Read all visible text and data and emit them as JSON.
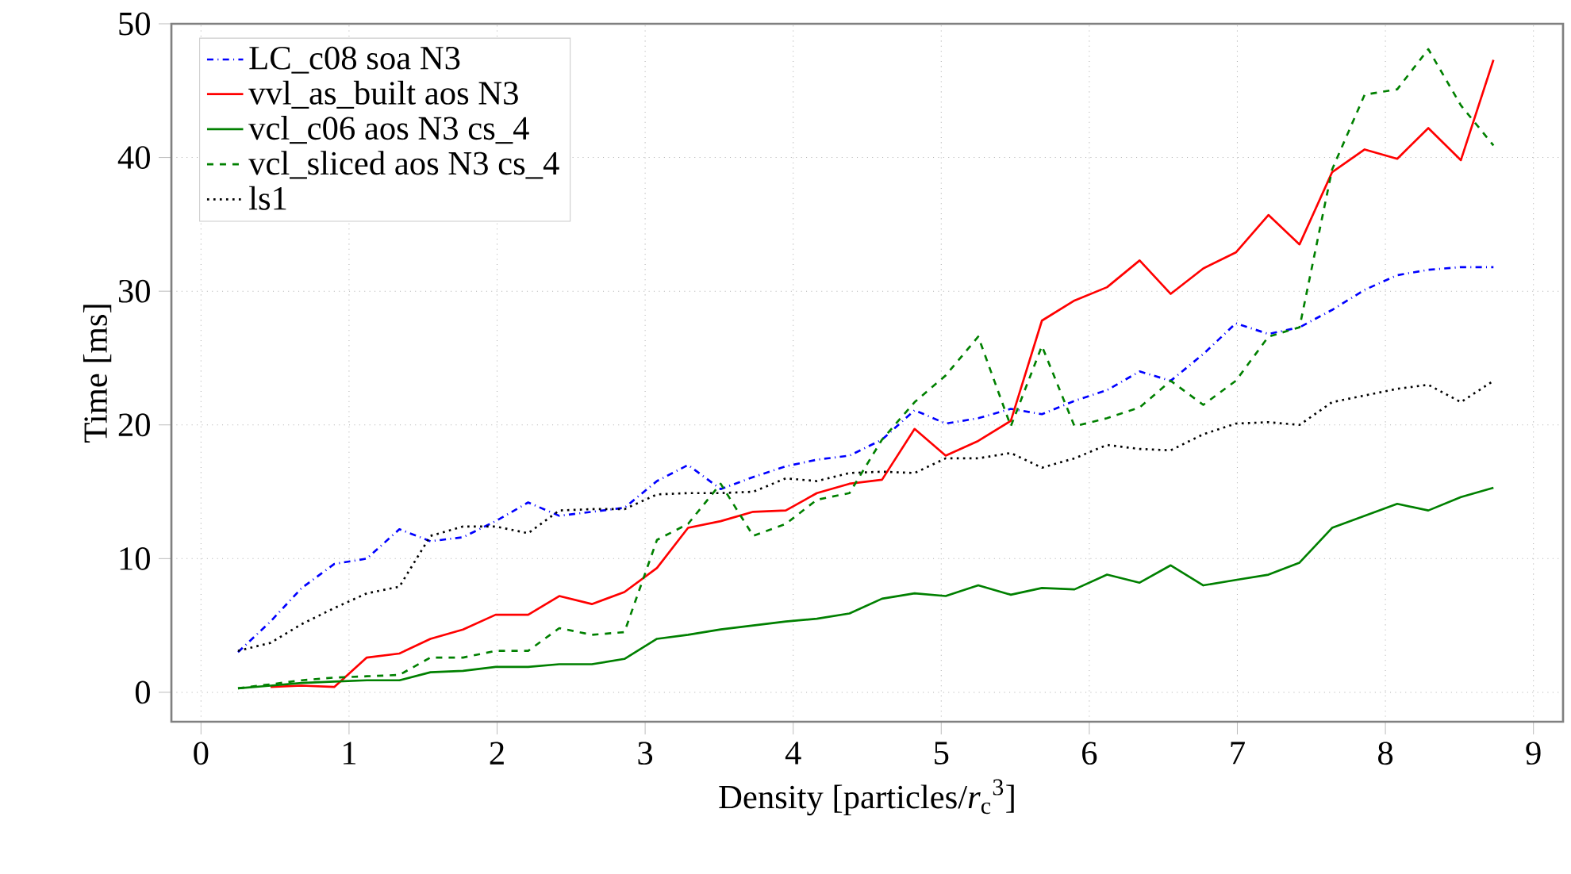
{
  "chart_data": {
    "type": "line",
    "xlabel": "Density [particles/*r*$_{c}$$^{3}$]",
    "ylabel": "Time [ms]",
    "x": [
      0.25,
      0.47,
      0.68,
      0.9,
      1.12,
      1.34,
      1.55,
      1.77,
      1.99,
      2.21,
      2.42,
      2.64,
      2.86,
      3.08,
      3.29,
      3.51,
      3.73,
      3.95,
      4.16,
      4.38,
      4.6,
      4.82,
      5.03,
      5.25,
      5.47,
      5.68,
      5.9,
      6.12,
      6.34,
      6.55,
      6.77,
      6.99,
      7.21,
      7.42,
      7.64,
      7.86,
      8.08,
      8.29,
      8.51,
      8.73
    ],
    "series": [
      {
        "name": "LC_c08 soa N3",
        "color": "#0000ff",
        "line_style": "dashdot",
        "values": [
          3.0,
          5.3,
          7.8,
          9.6,
          10.0,
          12.2,
          11.3,
          11.6,
          12.8,
          14.2,
          13.2,
          13.5,
          13.8,
          15.8,
          17.0,
          15.2,
          16.1,
          16.9,
          17.4,
          17.7,
          18.9,
          21.1,
          20.1,
          20.5,
          21.2,
          20.8,
          21.8,
          22.6,
          24.0,
          23.3,
          25.3,
          27.6,
          26.8,
          27.3,
          28.6,
          30.1,
          31.2,
          31.6,
          31.8,
          31.8
        ]
      },
      {
        "name": "vvl_as_built aos N3",
        "color": "#ff0000",
        "line_style": "solid",
        "values": [
          null,
          0.4,
          0.5,
          0.4,
          2.6,
          2.9,
          4.0,
          4.7,
          5.8,
          5.8,
          7.2,
          6.6,
          7.5,
          9.3,
          12.3,
          12.8,
          13.5,
          13.6,
          14.9,
          15.6,
          15.9,
          19.7,
          17.7,
          18.8,
          20.3,
          27.8,
          29.3,
          30.3,
          32.3,
          29.8,
          31.7,
          32.9,
          35.7,
          33.5,
          38.9,
          40.6,
          39.9,
          42.2,
          39.8,
          47.3
        ]
      },
      {
        "name": "vcl_c06 aos N3 cs_4",
        "color": "#008000",
        "line_style": "solid",
        "values": [
          0.3,
          0.5,
          0.7,
          0.8,
          0.9,
          0.9,
          1.5,
          1.6,
          1.9,
          1.9,
          2.1,
          2.1,
          2.5,
          4.0,
          4.3,
          4.7,
          5.0,
          5.3,
          5.5,
          5.9,
          7.0,
          7.4,
          7.2,
          8.0,
          7.3,
          7.8,
          7.7,
          8.8,
          8.2,
          9.5,
          8.0,
          8.4,
          8.8,
          9.7,
          12.3,
          13.2,
          14.1,
          13.6,
          14.6,
          15.3
        ]
      },
      {
        "name": "vcl_sliced aos N3 cs_4",
        "color": "#008000",
        "line_style": "dashed",
        "values": [
          0.3,
          0.6,
          0.9,
          1.1,
          1.2,
          1.3,
          2.6,
          2.6,
          3.1,
          3.1,
          4.8,
          4.3,
          4.5,
          11.4,
          12.6,
          15.6,
          11.7,
          12.6,
          14.4,
          14.9,
          18.9,
          21.7,
          23.7,
          26.6,
          19.9,
          25.9,
          19.9,
          20.5,
          21.3,
          23.3,
          21.5,
          23.3,
          26.6,
          27.3,
          39.1,
          44.7,
          45.1,
          48.1,
          43.9,
          40.9
        ]
      },
      {
        "name": "ls1",
        "color": "#000000",
        "line_style": "dotted",
        "values": [
          3.1,
          3.7,
          5.1,
          6.3,
          7.4,
          7.9,
          11.7,
          12.4,
          12.4,
          11.9,
          13.6,
          13.7,
          13.7,
          14.8,
          14.9,
          14.9,
          15.0,
          16.0,
          15.8,
          16.4,
          16.5,
          16.4,
          17.5,
          17.5,
          17.9,
          16.8,
          17.5,
          18.5,
          18.2,
          18.1,
          19.3,
          20.1,
          20.2,
          20.0,
          21.7,
          22.2,
          22.7,
          23.0,
          21.7,
          23.3
        ]
      }
    ],
    "xlim": [
      -0.2,
      9.2
    ],
    "ylim": [
      -2.2,
      50
    ],
    "xticks": [
      0,
      1,
      2,
      3,
      4,
      5,
      6,
      7,
      8,
      9
    ],
    "yticks": [
      0,
      10,
      20,
      30,
      40,
      50
    ],
    "grid": true,
    "legend": "top left",
    "marker": "none"
  }
}
